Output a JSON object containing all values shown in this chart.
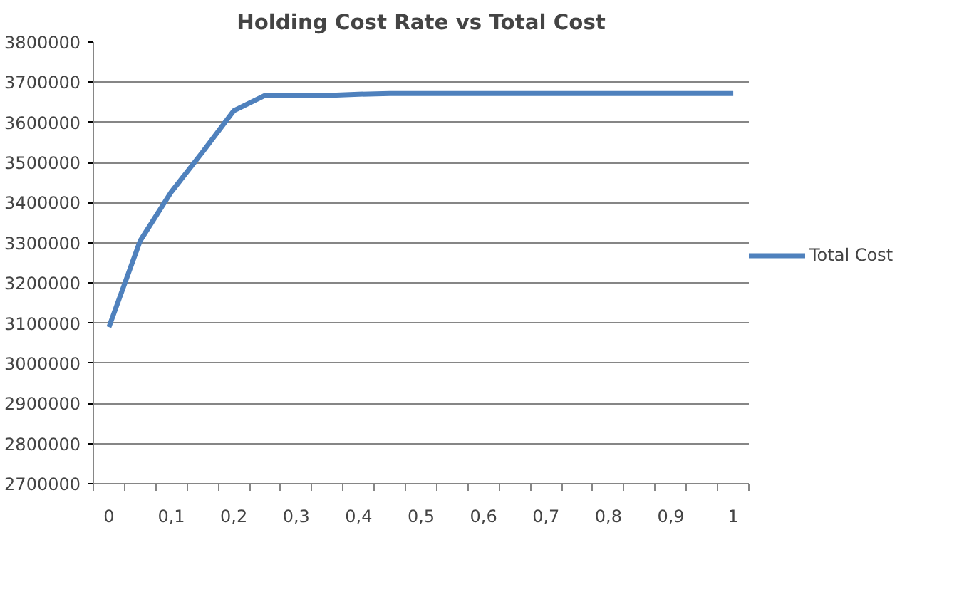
{
  "chart_data": {
    "type": "line",
    "title": "Holding Cost Rate vs Total Cost",
    "categories": [
      "0",
      null,
      "0,1",
      null,
      "0,2",
      null,
      "0,3",
      null,
      "0,4",
      null,
      "0,5",
      null,
      "0,6",
      null,
      "0,7",
      null,
      "0,8",
      null,
      "0,9",
      null,
      "1"
    ],
    "series": [
      {
        "name": "Total Cost",
        "color": "#4f81bd",
        "values": [
          3090000,
          3305000,
          3427000,
          3526000,
          3629000,
          3667000,
          3667000,
          3667000,
          3670000,
          3672000,
          3672000,
          3672000,
          3672000,
          3672000,
          3672000,
          3672000,
          3672000,
          3672000,
          3672000,
          3672000,
          3672000
        ]
      }
    ],
    "ylim": [
      2700000,
      3800000
    ],
    "yticks": [
      2700000,
      2800000,
      2900000,
      3000000,
      3100000,
      3200000,
      3300000,
      3400000,
      3500000,
      3600000,
      3700000,
      3800000
    ],
    "grid": "y",
    "legend": "right",
    "marker": "none",
    "line_style": "solid"
  }
}
